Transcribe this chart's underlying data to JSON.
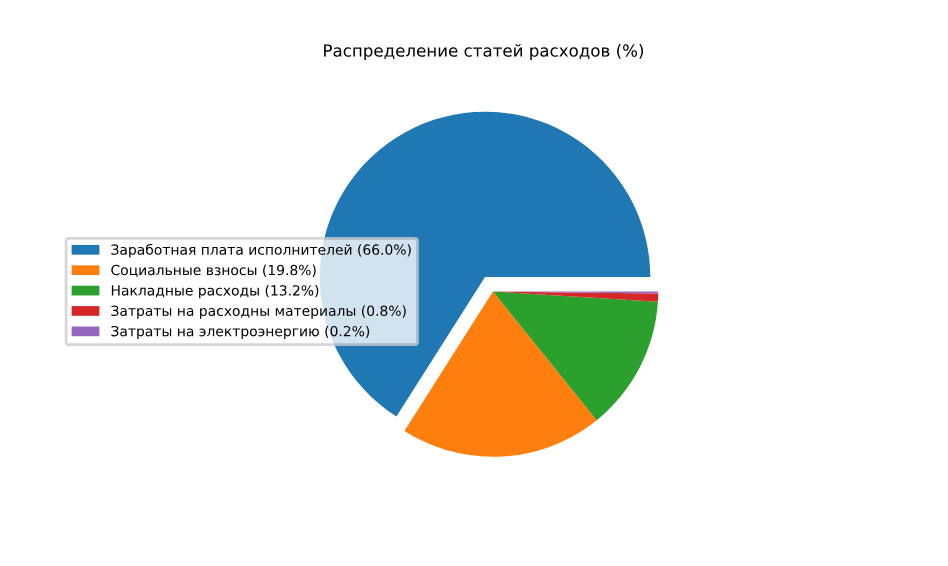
{
  "chart_data": {
    "type": "pie",
    "title": "Распределение статей расходов (%)",
    "categories": [
      "Заработная плата исполнителей (66.0%)",
      "Социальные взносы (19.8%)",
      "Накладные расходы (13.2%)",
      "Затраты на расходны материалы (0.8%)",
      "Затраты на электроэнергию (0.2%)"
    ],
    "values": [
      66.0,
      19.8,
      13.2,
      0.8,
      0.2
    ],
    "colors": [
      "#1f77b4",
      "#ff7f0e",
      "#2ca02c",
      "#d62728",
      "#9467bd"
    ],
    "legend": "left"
  }
}
